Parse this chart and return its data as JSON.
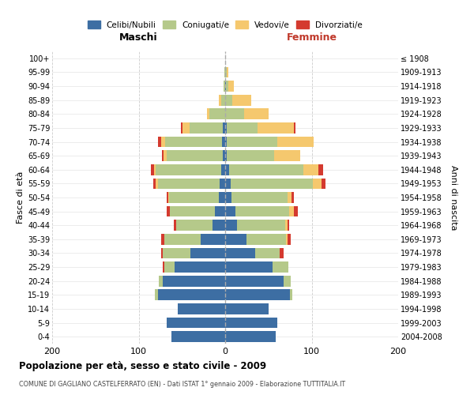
{
  "age_groups": [
    "0-4",
    "5-9",
    "10-14",
    "15-19",
    "20-24",
    "25-29",
    "30-34",
    "35-39",
    "40-44",
    "45-49",
    "50-54",
    "55-59",
    "60-64",
    "65-69",
    "70-74",
    "75-79",
    "80-84",
    "85-89",
    "90-94",
    "95-99",
    "100+"
  ],
  "birth_years": [
    "2004-2008",
    "1999-2003",
    "1994-1998",
    "1989-1993",
    "1984-1988",
    "1979-1983",
    "1974-1978",
    "1969-1973",
    "1964-1968",
    "1959-1963",
    "1954-1958",
    "1949-1953",
    "1944-1948",
    "1939-1943",
    "1934-1938",
    "1929-1933",
    "1924-1928",
    "1919-1923",
    "1914-1918",
    "1909-1913",
    "≤ 1908"
  ],
  "colors": {
    "celibi": "#3d6ea3",
    "coniugati": "#b5c98a",
    "vedovi": "#f5c86e",
    "divorziati": "#d43a2f"
  },
  "maschi": {
    "celibi": [
      62,
      68,
      55,
      78,
      72,
      58,
      40,
      28,
      15,
      12,
      7,
      6,
      5,
      3,
      4,
      3,
      0,
      0,
      0,
      0,
      0
    ],
    "coniugati": [
      0,
      0,
      0,
      3,
      5,
      12,
      32,
      42,
      42,
      52,
      58,
      72,
      75,
      65,
      65,
      38,
      18,
      5,
      2,
      1,
      0
    ],
    "vedovi": [
      0,
      0,
      0,
      0,
      0,
      0,
      0,
      0,
      0,
      0,
      1,
      2,
      2,
      3,
      5,
      8,
      3,
      2,
      0,
      0,
      0
    ],
    "divorziati": [
      0,
      0,
      0,
      0,
      0,
      2,
      2,
      4,
      2,
      4,
      2,
      3,
      4,
      2,
      4,
      2,
      0,
      0,
      0,
      0,
      0
    ]
  },
  "femmine": {
    "nubili": [
      58,
      60,
      50,
      75,
      68,
      55,
      35,
      25,
      14,
      12,
      7,
      6,
      5,
      2,
      2,
      2,
      0,
      0,
      1,
      0,
      0
    ],
    "coniugate": [
      0,
      0,
      0,
      3,
      8,
      18,
      28,
      45,
      55,
      62,
      65,
      95,
      85,
      55,
      58,
      35,
      22,
      8,
      3,
      2,
      0
    ],
    "vedove": [
      0,
      0,
      0,
      0,
      0,
      0,
      0,
      2,
      3,
      5,
      5,
      10,
      18,
      30,
      42,
      42,
      28,
      22,
      6,
      2,
      0
    ],
    "divorziate": [
      0,
      0,
      0,
      0,
      0,
      0,
      5,
      4,
      2,
      5,
      2,
      5,
      5,
      0,
      0,
      2,
      0,
      0,
      0,
      0,
      0
    ]
  },
  "title": "Popolazione per età, sesso e stato civile - 2009",
  "subtitle": "COMUNE DI GAGLIANO CASTELFERRATO (EN) - Dati ISTAT 1° gennaio 2009 - Elaborazione TUTTITALIA.IT",
  "ylabel_left": "Fasce di età",
  "ylabel_right": "Anni di nascita",
  "xlabel_left": "Maschi",
  "xlabel_right": "Femmine",
  "xlim": 200,
  "legend_labels": [
    "Celibi/Nubili",
    "Coniugati/e",
    "Vedovi/e",
    "Divorziati/e"
  ]
}
